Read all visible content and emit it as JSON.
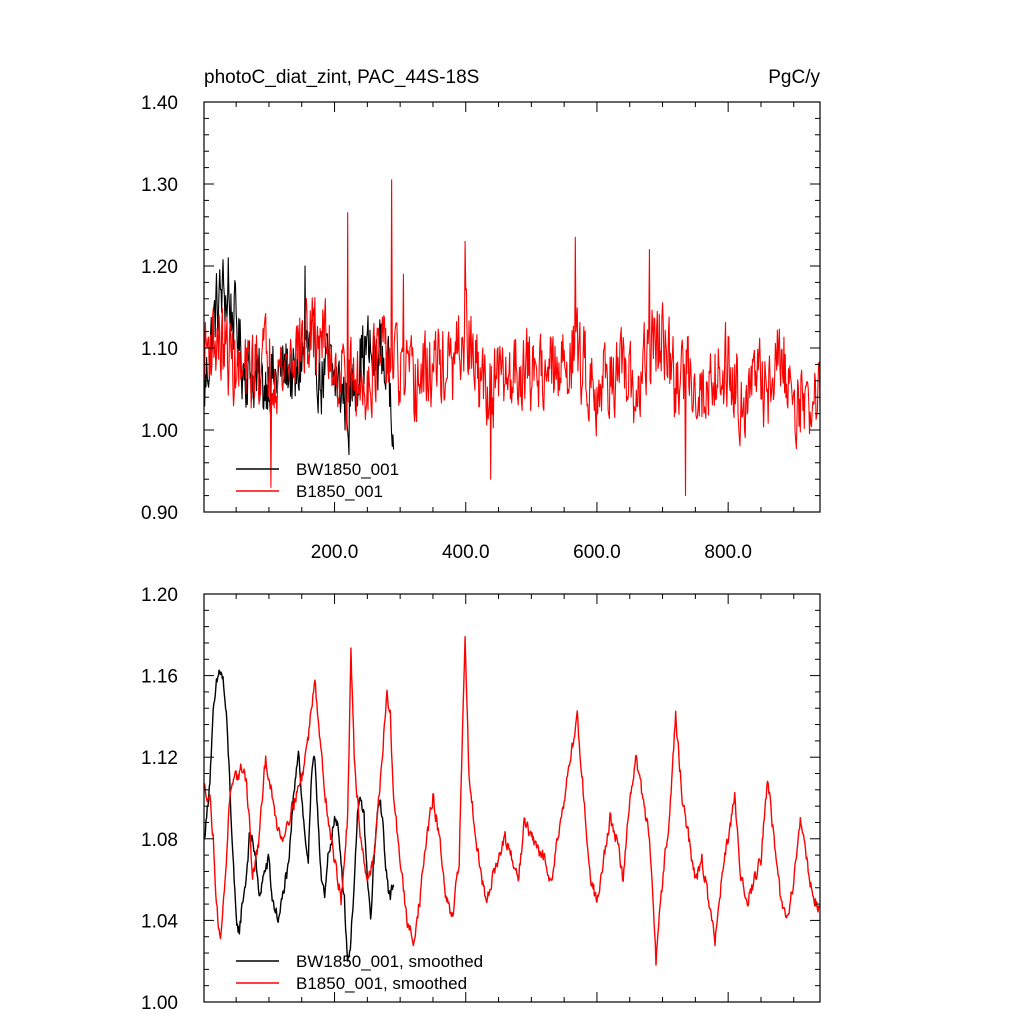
{
  "chart_data": [
    {
      "type": "line",
      "title": "photoC_diat_zint, PAC_44S-18S",
      "units": "PgC/y",
      "xlim": [
        1,
        940
      ],
      "ylim": [
        0.9,
        1.4
      ],
      "x_ticks": [
        200,
        400,
        600,
        800
      ],
      "x_tick_labels": [
        "200.0",
        "400.0",
        "600.0",
        "800.0"
      ],
      "y_ticks": [
        0.9,
        1.0,
        1.1,
        1.2,
        1.3,
        1.4
      ],
      "y_tick_labels": [
        "0.90",
        "1.00",
        "1.10",
        "1.20",
        "1.30",
        "1.40"
      ],
      "legend": [
        "BW1850_001",
        "B1850_001"
      ],
      "legend_position": "bottom-left",
      "series": [
        {
          "name": "BW1850_001",
          "color": "#000000",
          "x_range": [
            1,
            290
          ],
          "anchors": [
            [
              1,
              1.04
            ],
            [
              10,
              1.1
            ],
            [
              20,
              1.15
            ],
            [
              30,
              1.17
            ],
            [
              40,
              1.15
            ],
            [
              50,
              1.13
            ],
            [
              60,
              1.08
            ],
            [
              70,
              1.07
            ],
            [
              80,
              1.06
            ],
            [
              90,
              1.05
            ],
            [
              100,
              1.07
            ],
            [
              110,
              1.06
            ],
            [
              120,
              1.07
            ],
            [
              130,
              1.08
            ],
            [
              140,
              1.05
            ],
            [
              150,
              1.09
            ],
            [
              160,
              1.1
            ],
            [
              170,
              1.09
            ],
            [
              180,
              1.06
            ],
            [
              190,
              1.08
            ],
            [
              200,
              1.06
            ],
            [
              210,
              1.05
            ],
            [
              220,
              1.03
            ],
            [
              230,
              1.06
            ],
            [
              240,
              1.09
            ],
            [
              250,
              1.1
            ],
            [
              260,
              1.08
            ],
            [
              270,
              1.1
            ],
            [
              280,
              1.07
            ],
            [
              290,
              1.03
            ]
          ],
          "noise": 0.04,
          "spikes": [
            [
              38,
              1.21
            ],
            [
              155,
              1.2
            ],
            [
              222,
              0.97
            ],
            [
              288,
              0.98
            ]
          ]
        },
        {
          "name": "B1850_001",
          "color": "#ff0000",
          "x_range": [
            1,
            940
          ],
          "anchors": [
            [
              1,
              1.1
            ],
            [
              20,
              1.11
            ],
            [
              40,
              1.09
            ],
            [
              60,
              1.06
            ],
            [
              80,
              1.08
            ],
            [
              100,
              1.09
            ],
            [
              120,
              1.07
            ],
            [
              140,
              1.1
            ],
            [
              160,
              1.11
            ],
            [
              180,
              1.12
            ],
            [
              200,
              1.08
            ],
            [
              220,
              1.06
            ],
            [
              240,
              1.05
            ],
            [
              260,
              1.08
            ],
            [
              280,
              1.09
            ],
            [
              300,
              1.07
            ],
            [
              320,
              1.05
            ],
            [
              340,
              1.07
            ],
            [
              360,
              1.08
            ],
            [
              380,
              1.07
            ],
            [
              400,
              1.12
            ],
            [
              420,
              1.06
            ],
            [
              440,
              1.05
            ],
            [
              460,
              1.06
            ],
            [
              480,
              1.08
            ],
            [
              500,
              1.07
            ],
            [
              520,
              1.08
            ],
            [
              540,
              1.06
            ],
            [
              560,
              1.1
            ],
            [
              580,
              1.08
            ],
            [
              600,
              1.05
            ],
            [
              620,
              1.07
            ],
            [
              640,
              1.06
            ],
            [
              660,
              1.04
            ],
            [
              680,
              1.1
            ],
            [
              700,
              1.11
            ],
            [
              720,
              1.05
            ],
            [
              740,
              1.08
            ],
            [
              760,
              1.04
            ],
            [
              780,
              1.07
            ],
            [
              800,
              1.08
            ],
            [
              820,
              1.04
            ],
            [
              840,
              1.06
            ],
            [
              860,
              1.05
            ],
            [
              880,
              1.09
            ],
            [
              900,
              1.04
            ],
            [
              920,
              1.03
            ],
            [
              940,
              1.04
            ]
          ],
          "noise": 0.045,
          "spikes": [
            [
              220,
              1.265
            ],
            [
              287,
              1.305
            ],
            [
              399,
              1.23
            ],
            [
              567,
              1.235
            ],
            [
              438,
              0.94
            ],
            [
              735,
              0.92
            ],
            [
              103,
              0.93
            ],
            [
              680,
              1.22
            ],
            [
              305,
              1.19
            ]
          ]
        }
      ]
    },
    {
      "type": "line",
      "title": "",
      "xlim": [
        1,
        940
      ],
      "ylim": [
        1.0,
        1.2
      ],
      "y_ticks": [
        1.0,
        1.04,
        1.08,
        1.12,
        1.16,
        1.2
      ],
      "y_tick_labels": [
        "1.00",
        "1.04",
        "1.08",
        "1.12",
        "1.16",
        "1.20"
      ],
      "legend": [
        "BW1850_001, smoothed",
        "B1850_001, smoothed"
      ],
      "legend_position": "bottom-left",
      "series": [
        {
          "name": "BW1850_001, smoothed",
          "color": "#000000",
          "x_range": [
            1,
            290
          ],
          "anchors": [
            [
              1,
              1.08
            ],
            [
              5,
              1.09
            ],
            [
              10,
              1.11
            ],
            [
              15,
              1.14
            ],
            [
              20,
              1.155
            ],
            [
              25,
              1.163
            ],
            [
              30,
              1.158
            ],
            [
              35,
              1.14
            ],
            [
              40,
              1.11
            ],
            [
              45,
              1.07
            ],
            [
              50,
              1.04
            ],
            [
              55,
              1.035
            ],
            [
              60,
              1.05
            ],
            [
              65,
              1.06
            ],
            [
              70,
              1.08
            ],
            [
              75,
              1.08
            ],
            [
              80,
              1.07
            ],
            [
              85,
              1.05
            ],
            [
              90,
              1.06
            ],
            [
              95,
              1.065
            ],
            [
              100,
              1.07
            ],
            [
              105,
              1.05
            ],
            [
              110,
              1.045
            ],
            [
              115,
              1.04
            ],
            [
              120,
              1.05
            ],
            [
              125,
              1.06
            ],
            [
              130,
              1.065
            ],
            [
              135,
              1.09
            ],
            [
              140,
              1.11
            ],
            [
              145,
              1.125
            ],
            [
              150,
              1.1
            ],
            [
              155,
              1.08
            ],
            [
              160,
              1.07
            ],
            [
              165,
              1.11
            ],
            [
              170,
              1.12
            ],
            [
              175,
              1.09
            ],
            [
              180,
              1.06
            ],
            [
              185,
              1.05
            ],
            [
              190,
              1.07
            ],
            [
              195,
              1.08
            ],
            [
              200,
              1.09
            ],
            [
              205,
              1.085
            ],
            [
              210,
              1.07
            ],
            [
              215,
              1.05
            ],
            [
              220,
              1.02
            ],
            [
              225,
              1.03
            ],
            [
              230,
              1.06
            ],
            [
              235,
              1.09
            ],
            [
              240,
              1.1
            ],
            [
              245,
              1.09
            ],
            [
              250,
              1.06
            ],
            [
              255,
              1.04
            ],
            [
              260,
              1.07
            ],
            [
              265,
              1.09
            ],
            [
              270,
              1.1
            ],
            [
              275,
              1.08
            ],
            [
              280,
              1.06
            ],
            [
              285,
              1.05
            ],
            [
              290,
              1.06
            ]
          ],
          "noise": 0.003,
          "spikes": []
        },
        {
          "name": "B1850_001, smoothed",
          "color": "#ff0000",
          "x_range": [
            1,
            940
          ],
          "anchors": [
            [
              1,
              1.105
            ],
            [
              10,
              1.1
            ],
            [
              15,
              1.08
            ],
            [
              20,
              1.05
            ],
            [
              25,
              1.03
            ],
            [
              30,
              1.045
            ],
            [
              35,
              1.07
            ],
            [
              40,
              1.1
            ],
            [
              50,
              1.11
            ],
            [
              60,
              1.115
            ],
            [
              65,
              1.11
            ],
            [
              70,
              1.09
            ],
            [
              75,
              1.06
            ],
            [
              80,
              1.07
            ],
            [
              85,
              1.08
            ],
            [
              90,
              1.1
            ],
            [
              95,
              1.12
            ],
            [
              100,
              1.11
            ],
            [
              110,
              1.09
            ],
            [
              120,
              1.08
            ],
            [
              130,
              1.09
            ],
            [
              140,
              1.1
            ],
            [
              150,
              1.11
            ],
            [
              160,
              1.13
            ],
            [
              170,
              1.16
            ],
            [
              180,
              1.12
            ],
            [
              190,
              1.09
            ],
            [
              200,
              1.07
            ],
            [
              210,
              1.05
            ],
            [
              220,
              1.09
            ],
            [
              225,
              1.17
            ],
            [
              230,
              1.12
            ],
            [
              240,
              1.08
            ],
            [
              250,
              1.06
            ],
            [
              260,
              1.07
            ],
            [
              270,
              1.11
            ],
            [
              275,
              1.13
            ],
            [
              280,
              1.15
            ],
            [
              285,
              1.14
            ],
            [
              290,
              1.1
            ],
            [
              300,
              1.07
            ],
            [
              310,
              1.04
            ],
            [
              320,
              1.03
            ],
            [
              330,
              1.05
            ],
            [
              340,
              1.08
            ],
            [
              350,
              1.1
            ],
            [
              360,
              1.08
            ],
            [
              370,
              1.05
            ],
            [
              380,
              1.04
            ],
            [
              390,
              1.07
            ],
            [
              399,
              1.18
            ],
            [
              405,
              1.11
            ],
            [
              420,
              1.07
            ],
            [
              430,
              1.05
            ],
            [
              440,
              1.06
            ],
            [
              450,
              1.07
            ],
            [
              460,
              1.08
            ],
            [
              470,
              1.07
            ],
            [
              480,
              1.06
            ],
            [
              490,
              1.09
            ],
            [
              500,
              1.08
            ],
            [
              520,
              1.07
            ],
            [
              530,
              1.06
            ],
            [
              540,
              1.08
            ],
            [
              550,
              1.1
            ],
            [
              560,
              1.12
            ],
            [
              570,
              1.14
            ],
            [
              580,
              1.1
            ],
            [
              590,
              1.06
            ],
            [
              600,
              1.05
            ],
            [
              610,
              1.07
            ],
            [
              620,
              1.09
            ],
            [
              630,
              1.08
            ],
            [
              640,
              1.06
            ],
            [
              650,
              1.1
            ],
            [
              660,
              1.12
            ],
            [
              670,
              1.1
            ],
            [
              680,
              1.08
            ],
            [
              690,
              1.02
            ],
            [
              700,
              1.06
            ],
            [
              710,
              1.09
            ],
            [
              720,
              1.14
            ],
            [
              730,
              1.1
            ],
            [
              740,
              1.08
            ],
            [
              750,
              1.06
            ],
            [
              760,
              1.07
            ],
            [
              770,
              1.05
            ],
            [
              780,
              1.03
            ],
            [
              790,
              1.06
            ],
            [
              800,
              1.08
            ],
            [
              810,
              1.1
            ],
            [
              820,
              1.06
            ],
            [
              830,
              1.05
            ],
            [
              840,
              1.06
            ],
            [
              850,
              1.07
            ],
            [
              860,
              1.11
            ],
            [
              870,
              1.08
            ],
            [
              880,
              1.05
            ],
            [
              890,
              1.04
            ],
            [
              900,
              1.06
            ],
            [
              910,
              1.09
            ],
            [
              920,
              1.07
            ],
            [
              930,
              1.05
            ],
            [
              940,
              1.045
            ]
          ],
          "noise": 0.003,
          "spikes": []
        }
      ]
    }
  ]
}
